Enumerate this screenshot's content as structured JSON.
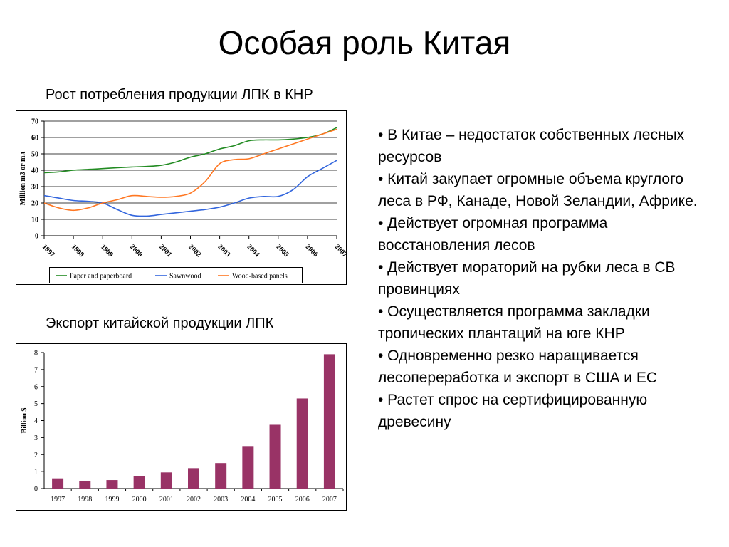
{
  "page": {
    "title": "Особая роль Китая",
    "chart1_heading": "Рост потребления продукции ЛПК в КНР",
    "chart2_heading": "Экспорт китайской продукции ЛПК"
  },
  "bullets": [
    "• В Китае – недостаток собственных лесных ресурсов",
    "• Китай закупает огромные объема круглого леса в РФ, Канаде, Новой Зеландии, Африке.",
    "• Действует огромная программа восстановления лесов",
    "• Действует мораторий на рубки леса в СВ провинциях",
    "• Осуществляется программа закладки тропических плантаций на юге КНР",
    "• Одновременно резко наращивается лесопереработка и экспорт в США и ЕС",
    "• Растет спрос на сертифицированную древесину"
  ],
  "chart_data": [
    {
      "type": "line",
      "ylabel": "Million m3 or m.t",
      "xlabel": "",
      "ylim": [
        0,
        70
      ],
      "yticks": [
        "0",
        "10",
        "20",
        "30",
        "40",
        "50",
        "60",
        "70"
      ],
      "categories": [
        "1997",
        "1998",
        "1999",
        "2000",
        "2001",
        "2002",
        "2003",
        "2004",
        "2005",
        "2006",
        "2007"
      ],
      "grid": true,
      "legend": "bottom",
      "series": [
        {
          "name": "Paper and paperboard",
          "color": "#228b22",
          "x": [
            1997,
            1997.5,
            1998,
            1998.5,
            1999,
            1999.5,
            2000,
            2000.5,
            2001,
            2001.5,
            2002,
            2002.5,
            2003,
            2003.5,
            2004,
            2004.5,
            2005,
            2005.5,
            2006,
            2006.5,
            2007
          ],
          "values": [
            38.5,
            39,
            40,
            40.5,
            41,
            41.5,
            42,
            42.3,
            43,
            45,
            48,
            50,
            53,
            55,
            58,
            58.5,
            58.5,
            59,
            60,
            62,
            66
          ]
        },
        {
          "name": "Sawnwood",
          "color": "#3366dd",
          "x": [
            1997,
            1997.5,
            1998,
            1998.5,
            1999,
            1999.5,
            2000,
            2000.5,
            2001,
            2001.5,
            2002,
            2002.5,
            2003,
            2003.5,
            2004,
            2004.5,
            2005,
            2005.5,
            2006,
            2006.5,
            2007
          ],
          "values": [
            24.5,
            23,
            21.5,
            21,
            20,
            16,
            12.5,
            12,
            13,
            14,
            15,
            16,
            17.5,
            20,
            23,
            24,
            24,
            28,
            36,
            41,
            46
          ]
        },
        {
          "name": "Wood-based panels",
          "color": "#ff7722",
          "x": [
            1997,
            1997.5,
            1998,
            1998.5,
            1999,
            1999.5,
            2000,
            2000.5,
            2001,
            2001.5,
            2002,
            2002.5,
            2003,
            2003.5,
            2004,
            2004.5,
            2005,
            2005.5,
            2006,
            2006.5,
            2007
          ],
          "values": [
            20,
            17,
            15.5,
            17,
            20,
            22,
            24.5,
            24,
            23.5,
            24,
            26,
            33,
            44,
            46.5,
            47,
            50,
            53,
            56,
            59,
            62,
            65
          ]
        }
      ]
    },
    {
      "type": "bar",
      "ylabel": "Billion $",
      "xlabel": "",
      "ylim": [
        0,
        8
      ],
      "yticks": [
        "0",
        "1",
        "2",
        "3",
        "4",
        "5",
        "6",
        "7",
        "8"
      ],
      "categories": [
        "1997",
        "1998",
        "1999",
        "2000",
        "2001",
        "2002",
        "2003",
        "2004",
        "2005",
        "2006",
        "2007"
      ],
      "values": [
        0.6,
        0.45,
        0.5,
        0.75,
        0.95,
        1.2,
        1.5,
        2.5,
        3.75,
        5.3,
        7.9
      ],
      "color": "#993366",
      "grid": false
    }
  ]
}
